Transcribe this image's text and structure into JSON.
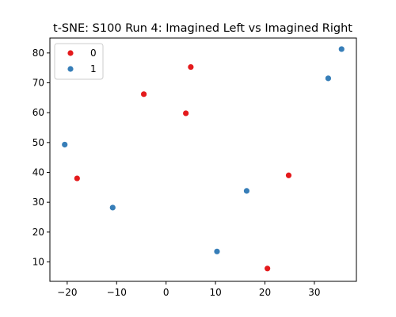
{
  "chart_data": {
    "type": "scatter",
    "title": "t-SNE: S100 Run 4: Imagined Left vs Imagined Right",
    "xlabel": "",
    "ylabel": "",
    "xlim": [
      -23.5,
      38.5
    ],
    "ylim": [
      3.5,
      85
    ],
    "xticks": [
      -20,
      -10,
      0,
      10,
      20,
      30
    ],
    "yticks": [
      10,
      20,
      30,
      40,
      50,
      60,
      70,
      80
    ],
    "xtick_labels": [
      "−20",
      "−10",
      "0",
      "10",
      "20",
      "30"
    ],
    "yticks_labels": [
      "10",
      "20",
      "30",
      "40",
      "50",
      "60",
      "70",
      "80"
    ],
    "grid": false,
    "legend_position": "top-left",
    "series": [
      {
        "name": "0",
        "color": "#e41a1c",
        "points": [
          {
            "x": -4.5,
            "y": 66.2
          },
          {
            "x": 4.0,
            "y": 59.8
          },
          {
            "x": 5.0,
            "y": 75.3
          },
          {
            "x": -18.0,
            "y": 38.0
          },
          {
            "x": 24.8,
            "y": 39.0
          },
          {
            "x": 20.5,
            "y": 7.8
          }
        ]
      },
      {
        "name": "1",
        "color": "#377eb8",
        "points": [
          {
            "x": -20.5,
            "y": 49.3
          },
          {
            "x": -10.8,
            "y": 28.2
          },
          {
            "x": 10.3,
            "y": 13.5
          },
          {
            "x": 16.3,
            "y": 33.8
          },
          {
            "x": 32.8,
            "y": 71.5
          },
          {
            "x": 35.5,
            "y": 81.3
          }
        ]
      }
    ]
  }
}
